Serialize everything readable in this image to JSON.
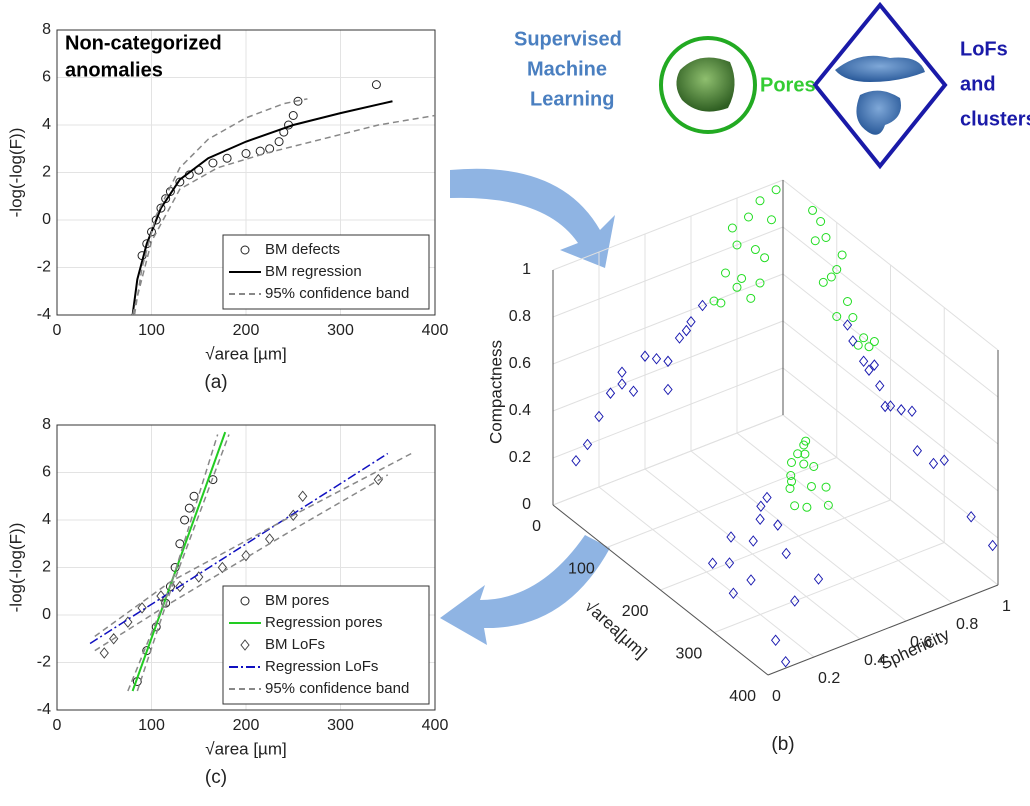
{
  "figure": {
    "method_label": [
      "Supervised",
      "Machine",
      "Learning"
    ],
    "pores_label": "Pores",
    "lofs_label": [
      "LoFs",
      "and",
      "clusters"
    ]
  },
  "chart_data": [
    {
      "type": "scatter",
      "panel": "(a)",
      "annotation": [
        "Non-categorized",
        "anomalies"
      ],
      "xlabel": "√area [µm]",
      "ylabel": "-log(-log(F))",
      "xlim": [
        0,
        400
      ],
      "ylim": [
        -4,
        8
      ],
      "xticks": [
        0,
        100,
        200,
        300,
        400
      ],
      "yticks": [
        -4,
        -2,
        0,
        2,
        4,
        6,
        8
      ],
      "grid": true,
      "legend": "lower right",
      "series": [
        {
          "name": "BM defects",
          "color": "#222222",
          "style": "markers",
          "marker": "circle",
          "x": [
            90,
            95,
            100,
            105,
            110,
            115,
            120,
            130,
            140,
            150,
            165,
            180,
            200,
            215,
            225,
            235,
            240,
            245,
            250,
            255,
            338
          ],
          "values": [
            -1.5,
            -1,
            -0.5,
            0,
            0.5,
            0.9,
            1.2,
            1.6,
            1.9,
            2.1,
            2.4,
            2.6,
            2.8,
            2.9,
            3.0,
            3.3,
            3.7,
            4.0,
            4.4,
            5.0,
            5.7
          ]
        },
        {
          "name": "BM regression",
          "color": "#000000",
          "style": "solid",
          "x": [
            80,
            85,
            95,
            110,
            130,
            160,
            200,
            250,
            300,
            355
          ],
          "values": [
            -4,
            -2.5,
            -1,
            0.5,
            1.7,
            2.6,
            3.3,
            4.0,
            4.5,
            5.0
          ]
        },
        {
          "name": "95% confidence band",
          "color": "#888888",
          "style": "dashed",
          "x": [
            82,
            90,
            105,
            130,
            160,
            200,
            240,
            265,
            null,
            80,
            100,
            130,
            170,
            220,
            280,
            340,
            400
          ],
          "values": [
            -4,
            -2,
            0.2,
            2.2,
            3.4,
            4.3,
            4.9,
            5.1,
            null,
            -4,
            -0.9,
            1.3,
            2.2,
            2.8,
            3.4,
            4.0,
            4.4
          ]
        }
      ]
    },
    {
      "type": "scatter3d",
      "panel": "(b)",
      "xlabel": "Sphericity",
      "ylabel": "√area[µm]",
      "zlabel": "Compactness",
      "xlim": [
        0,
        1
      ],
      "ylim": [
        0,
        400
      ],
      "zlim": [
        0,
        1
      ],
      "xticks": [
        0,
        0.2,
        0.4,
        0.6,
        0.8,
        1
      ],
      "yticks": [
        0,
        100,
        200,
        300,
        400
      ],
      "zticks": [
        0,
        0.2,
        0.4,
        0.6,
        0.8,
        1
      ],
      "grid": true,
      "series": [
        {
          "name": "Pores",
          "color": "#22dd22",
          "marker": "circle",
          "x": [
            0.85,
            0.9,
            0.8,
            0.75,
            0.95,
            0.7,
            0.88,
            0.82,
            0.78,
            0.92,
            0.73,
            0.86,
            0.97,
            0.8,
            0.9
          ],
          "y": [
            80,
            70,
            100,
            120,
            60,
            150,
            90,
            130,
            110,
            75,
            160,
            140,
            55,
            170,
            100
          ],
          "z": [
            0.9,
            0.95,
            0.8,
            0.7,
            0.85,
            0.6,
            0.75,
            0.65,
            0.88,
            0.7,
            0.58,
            0.55,
            0.97,
            0.62,
            0.6
          ]
        },
        {
          "name": "LoFs",
          "color": "#1a1ab0",
          "marker": "diamond",
          "x": [
            0.3,
            0.45,
            0.55,
            0.2,
            0.6,
            0.35,
            0.5,
            0.4,
            0.25,
            0.65,
            0.15,
            0.5,
            0.3,
            0.58,
            0.1
          ],
          "y": [
            200,
            180,
            150,
            250,
            130,
            300,
            220,
            160,
            190,
            120,
            350,
            280,
            240,
            170,
            390
          ],
          "z": [
            0.4,
            0.45,
            0.5,
            0.3,
            0.55,
            0.35,
            0.42,
            0.48,
            0.38,
            0.6,
            0.2,
            0.3,
            0.45,
            0.52,
            0.15
          ]
        }
      ]
    },
    {
      "type": "scatter",
      "panel": "(c)",
      "xlabel": "√area [µm]",
      "ylabel": "-log(-log(F))",
      "xlim": [
        0,
        400
      ],
      "ylim": [
        -4,
        8
      ],
      "xticks": [
        0,
        100,
        200,
        300,
        400
      ],
      "yticks": [
        -4,
        -2,
        0,
        2,
        4,
        6,
        8
      ],
      "grid": true,
      "legend": "lower right",
      "series": [
        {
          "name": "BM pores",
          "color": "#222222",
          "style": "markers",
          "marker": "circle",
          "x": [
            85,
            95,
            105,
            115,
            120,
            125,
            130,
            135,
            140,
            145,
            165
          ],
          "values": [
            -2.8,
            -1.5,
            -0.5,
            0.5,
            1.2,
            2,
            3,
            4,
            4.5,
            5,
            5.7
          ]
        },
        {
          "name": "Regression pores",
          "color": "#22cc22",
          "style": "solid",
          "x": [
            80,
            178
          ],
          "values": [
            -3.2,
            7.7
          ]
        },
        {
          "name": "BM LoFs",
          "color": "#444444",
          "style": "markers",
          "marker": "diamond",
          "x": [
            50,
            60,
            75,
            90,
            110,
            130,
            150,
            175,
            200,
            225,
            250,
            260,
            340
          ],
          "values": [
            -1.6,
            -1,
            -0.3,
            0.3,
            0.8,
            1.2,
            1.6,
            2,
            2.5,
            3.2,
            4.2,
            5,
            5.7
          ]
        },
        {
          "name": "Regression LoFs",
          "color": "#1010c0",
          "style": "dashdot",
          "x": [
            35,
            350
          ],
          "values": [
            -1.2,
            6.8
          ]
        },
        {
          "name": "95% confidence band",
          "color": "#888888",
          "style": "dashed",
          "x": [
            85,
            120,
            182,
            null,
            75,
            120,
            170,
            null,
            40,
            120,
            250,
            375,
            null,
            40,
            120,
            250,
            350
          ],
          "values": [
            -3.2,
            1.0,
            7.6,
            null,
            -3.2,
            1.2,
            7.6,
            null,
            -0.9,
            1.4,
            4.2,
            6.8,
            null,
            -1.5,
            0.5,
            3.6,
            5.9
          ]
        }
      ]
    }
  ]
}
